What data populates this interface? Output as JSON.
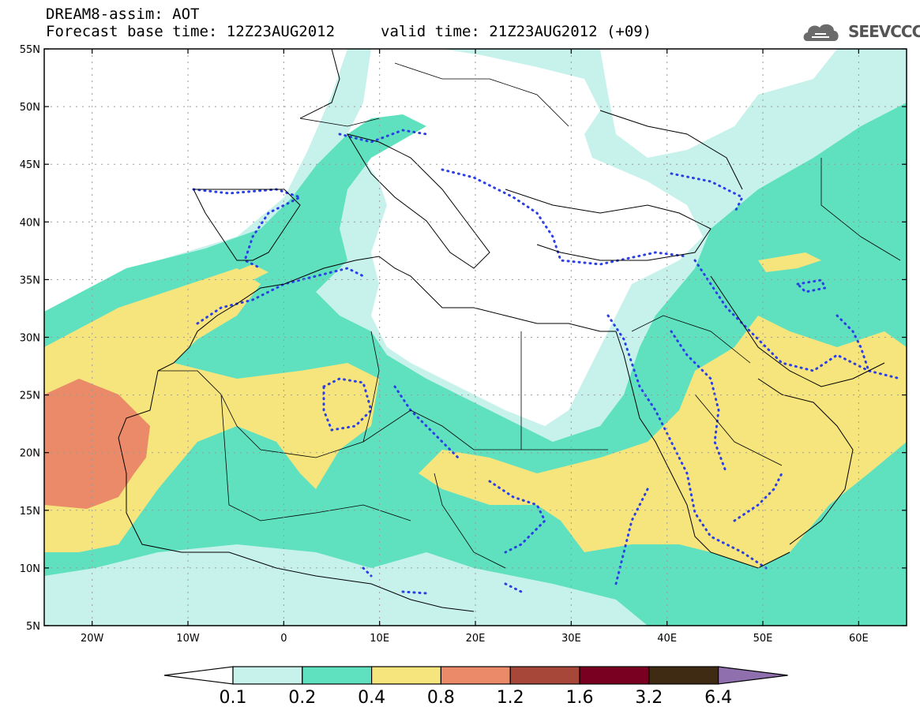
{
  "header": {
    "line1": "DREAM8-assim: AOT",
    "line2": "Forecast base time: 12Z23AUG2012",
    "line3": "valid time: 21Z23AUG2012 (+09)",
    "logo_text": "SEEVCCC"
  },
  "map": {
    "lon_range": [
      -25,
      65
    ],
    "lat_range": [
      5,
      55
    ],
    "lat_labels": [
      "55N",
      "50N",
      "45N",
      "40N",
      "35N",
      "30N",
      "25N",
      "20N",
      "15N",
      "10N",
      "5N"
    ],
    "lon_labels": [
      "20W",
      "10W",
      "0",
      "10E",
      "20E",
      "30E",
      "40E",
      "50E",
      "60E"
    ],
    "contour_style": "blue-dotted",
    "grid": "dotted"
  },
  "colorbar": {
    "colors": [
      "#c7f2ec",
      "#5fe1c0",
      "#f6e47c",
      "#ea8a68",
      "#a6473a",
      "#7a0022",
      "#3f2a14",
      "#8f6fae"
    ],
    "labels": [
      "0.1",
      "0.2",
      "0.4",
      "0.8",
      "1.2",
      "1.6",
      "3.2",
      "6.4"
    ]
  }
}
